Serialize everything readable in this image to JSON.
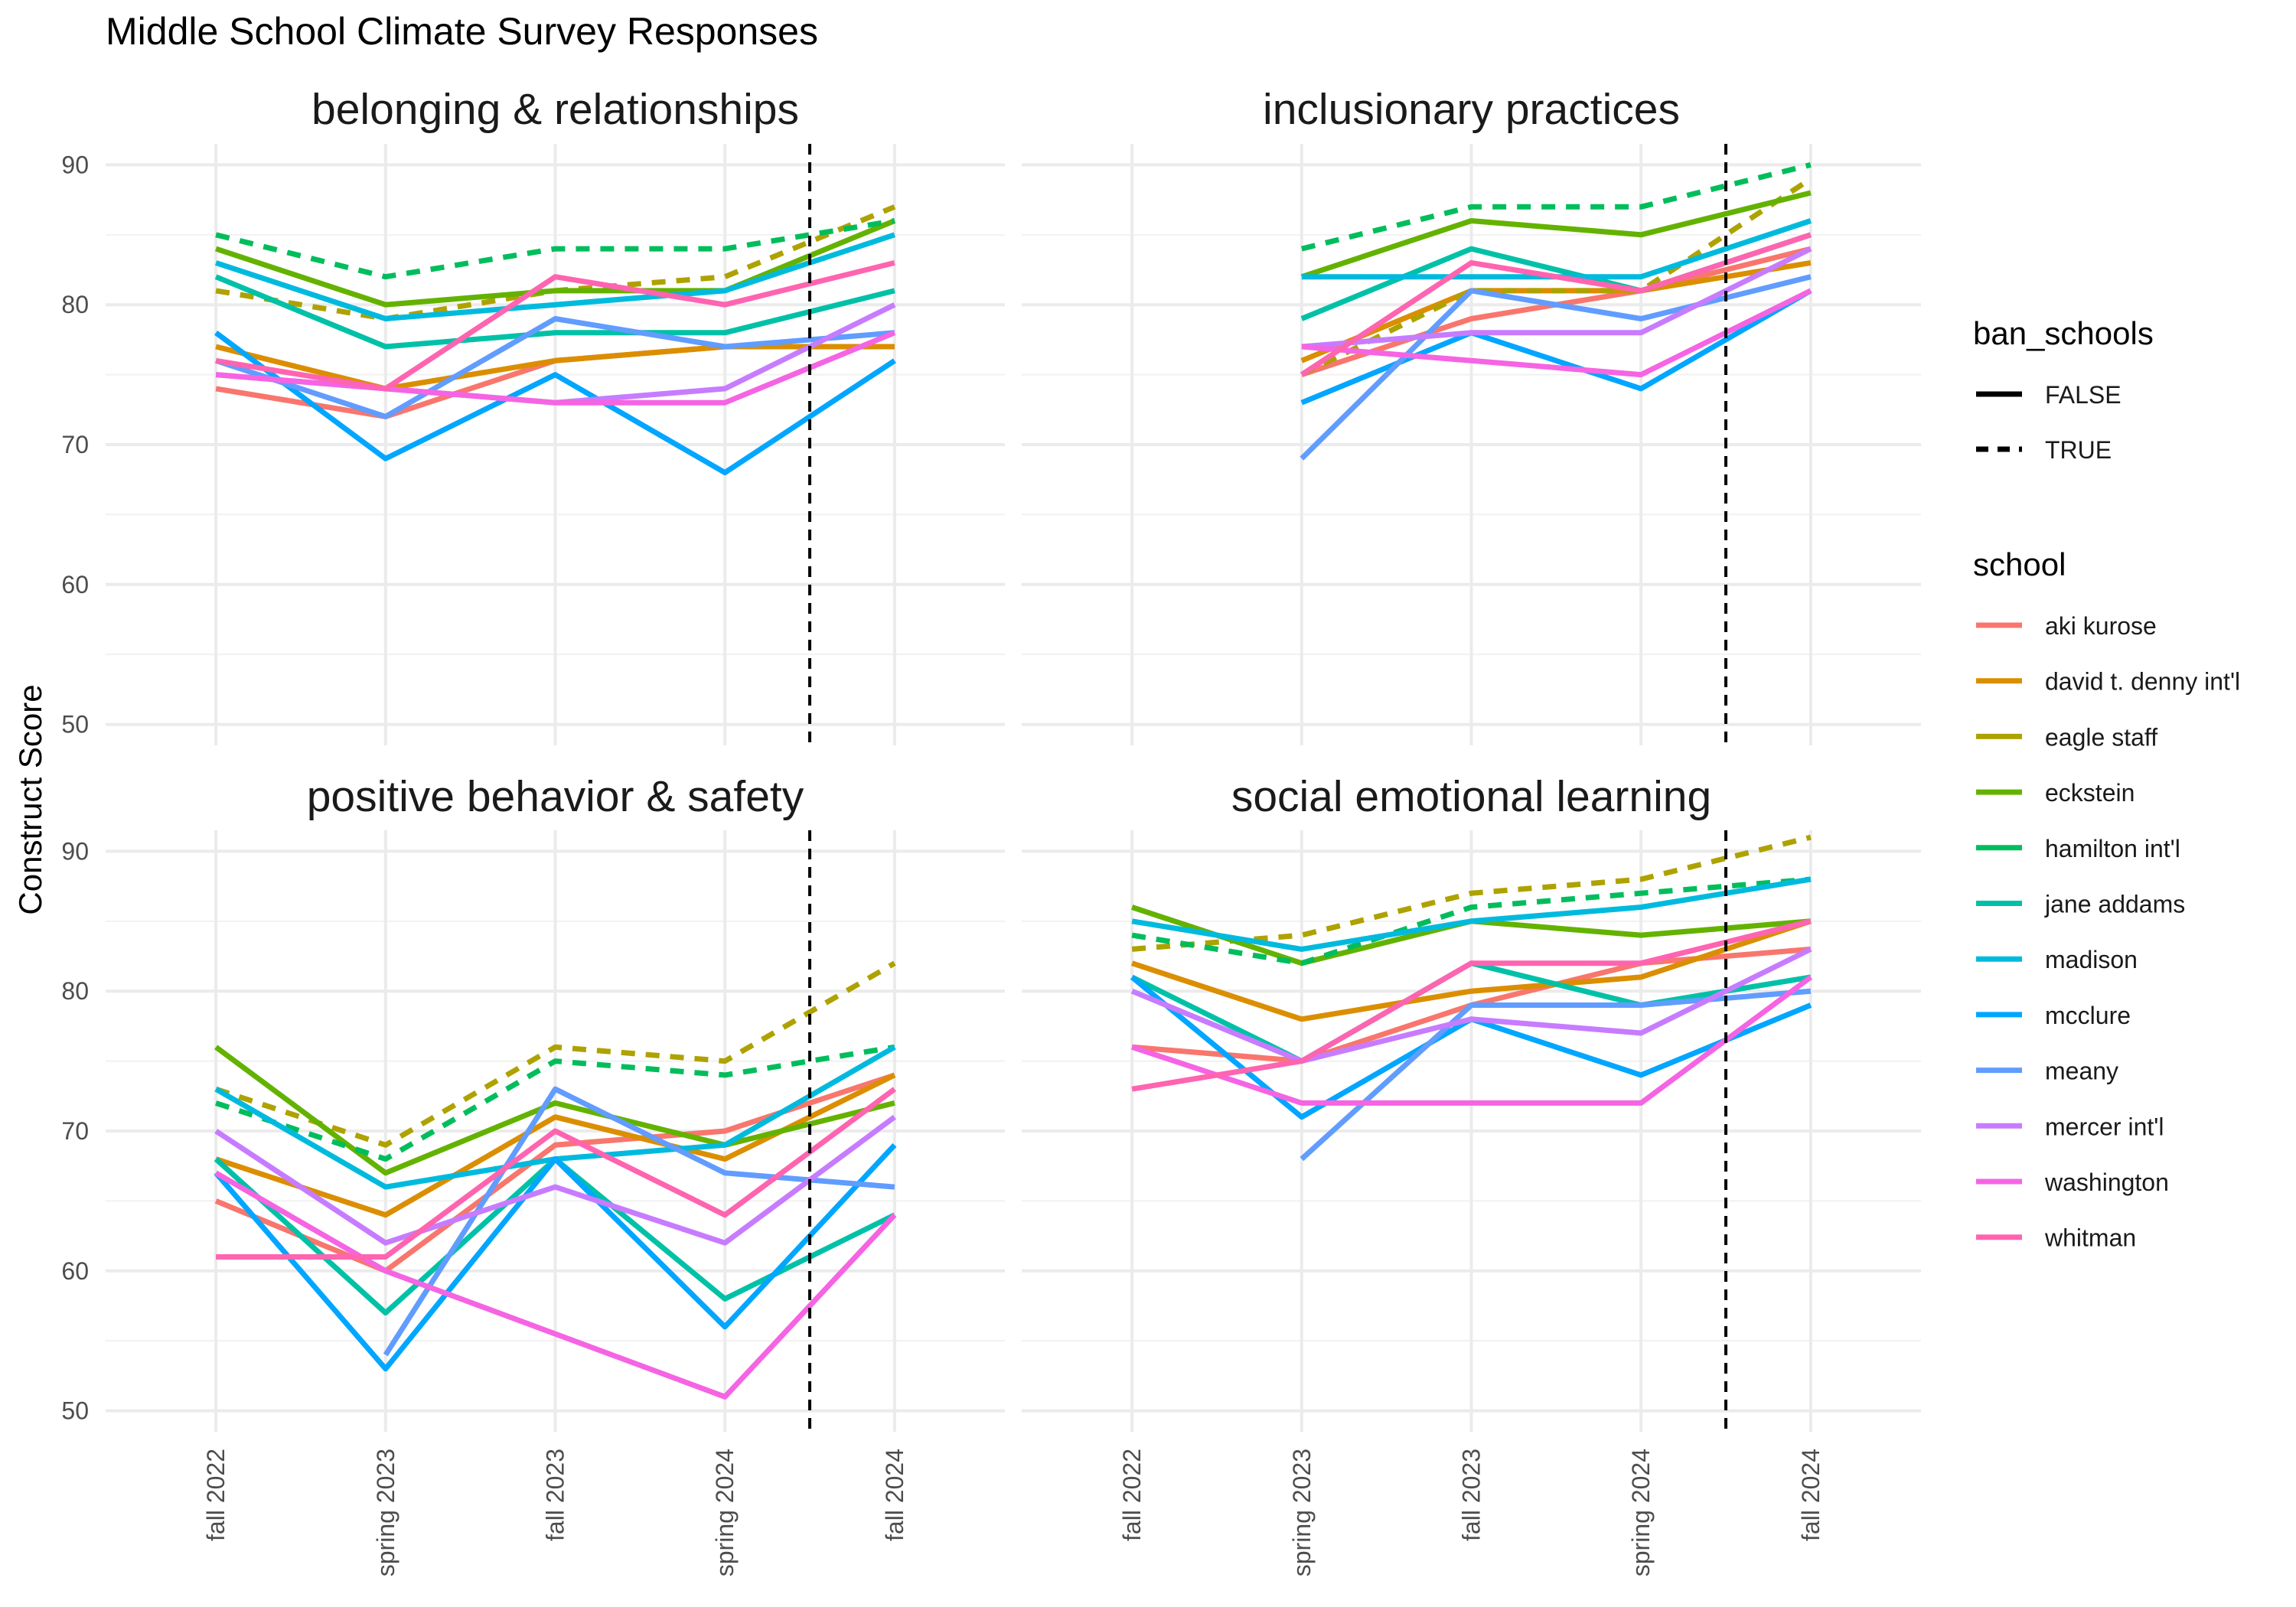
{
  "chart_data": {
    "type": "line",
    "title": "Middle School Climate Survey Responses",
    "ylabel": "Construct Score",
    "xlabel": "",
    "ylim": [
      48.5,
      91.5
    ],
    "y_ticks": [
      50,
      60,
      70,
      80,
      90
    ],
    "grid": true,
    "facet_layout": "2x2",
    "x": [
      "fall 2022",
      "spring 2023",
      "fall 2023",
      "spring 2024",
      "fall 2024"
    ],
    "vline": {
      "between": [
        "spring 2024",
        "fall 2024"
      ],
      "position": 0.5,
      "style": "dashed",
      "color": "#000000"
    },
    "legend": {
      "placement": "right",
      "linetype": {
        "title": "ban_schools",
        "items": [
          {
            "label": "FALSE",
            "dash": "solid"
          },
          {
            "label": "TRUE",
            "dash": "dashed"
          }
        ]
      },
      "color": {
        "title": "school"
      }
    },
    "schools": [
      {
        "name": "aki kurose",
        "color": "#F8766D",
        "ban": false
      },
      {
        "name": "david t. denny int'l",
        "color": "#DB8E00",
        "ban": false
      },
      {
        "name": "eagle staff",
        "color": "#AEA200",
        "ban": true
      },
      {
        "name": "eckstein",
        "color": "#64B200",
        "ban": false
      },
      {
        "name": "hamilton int'l",
        "color": "#00BD5C",
        "ban": true
      },
      {
        "name": "jane addams",
        "color": "#00C1A7",
        "ban": false
      },
      {
        "name": "madison",
        "color": "#00BADE",
        "ban": false
      },
      {
        "name": "mcclure",
        "color": "#00A6FF",
        "ban": false
      },
      {
        "name": "meany",
        "color": "#619CFF",
        "ban": false
      },
      {
        "name": "mercer int'l",
        "color": "#C77CFF",
        "ban": false
      },
      {
        "name": "washington",
        "color": "#F564E3",
        "ban": false
      },
      {
        "name": "whitman",
        "color": "#FF64B0",
        "ban": false
      }
    ],
    "panels": [
      {
        "title": "belonging & relationships",
        "series": [
          {
            "name": "aki kurose",
            "values": [
              74,
              72,
              76,
              77,
              77
            ]
          },
          {
            "name": "david t. denny int'l",
            "values": [
              77,
              74,
              76,
              77,
              77
            ]
          },
          {
            "name": "eagle staff",
            "values": [
              81,
              79,
              81,
              82,
              87
            ]
          },
          {
            "name": "eckstein",
            "values": [
              84,
              80,
              81,
              81,
              86
            ]
          },
          {
            "name": "hamilton int'l",
            "values": [
              85,
              82,
              84,
              84,
              86
            ]
          },
          {
            "name": "jane addams",
            "values": [
              82,
              77,
              78,
              78,
              81
            ]
          },
          {
            "name": "madison",
            "values": [
              83,
              79,
              80,
              81,
              85
            ]
          },
          {
            "name": "mcclure",
            "values": [
              78,
              69,
              75,
              68,
              76
            ]
          },
          {
            "name": "meany",
            "values": [
              76,
              72,
              79,
              77,
              78
            ]
          },
          {
            "name": "mercer int'l",
            "values": [
              75,
              74,
              73,
              74,
              80
            ]
          },
          {
            "name": "washington",
            "values": [
              75,
              74,
              73,
              73,
              78
            ]
          },
          {
            "name": "whitman",
            "values": [
              76,
              74,
              82,
              80,
              83
            ]
          }
        ]
      },
      {
        "title": "inclusionary practices",
        "series": [
          {
            "name": "aki kurose",
            "values": [
              null,
              75,
              79,
              81,
              84
            ]
          },
          {
            "name": "david t. denny int'l",
            "values": [
              null,
              76,
              81,
              81,
              83
            ]
          },
          {
            "name": "eagle staff",
            "values": [
              null,
              75,
              81,
              81,
              89
            ]
          },
          {
            "name": "eckstein",
            "values": [
              null,
              82,
              86,
              85,
              88
            ]
          },
          {
            "name": "hamilton int'l",
            "values": [
              null,
              84,
              87,
              87,
              90
            ]
          },
          {
            "name": "jane addams",
            "values": [
              null,
              79,
              84,
              81,
              85
            ]
          },
          {
            "name": "madison",
            "values": [
              null,
              82,
              82,
              82,
              86
            ]
          },
          {
            "name": "mcclure",
            "values": [
              null,
              73,
              78,
              74,
              81
            ]
          },
          {
            "name": "meany",
            "values": [
              null,
              69,
              81,
              79,
              82
            ]
          },
          {
            "name": "mercer int'l",
            "values": [
              null,
              77,
              78,
              78,
              84
            ]
          },
          {
            "name": "washington",
            "values": [
              null,
              77,
              76,
              75,
              81
            ]
          },
          {
            "name": "whitman",
            "values": [
              null,
              75,
              83,
              81,
              85
            ]
          }
        ]
      },
      {
        "title": "positive behavior & safety",
        "series": [
          {
            "name": "aki kurose",
            "values": [
              65,
              60,
              69,
              70,
              74
            ]
          },
          {
            "name": "david t. denny int'l",
            "values": [
              68,
              64,
              71,
              68,
              74
            ]
          },
          {
            "name": "eagle staff",
            "values": [
              73,
              69,
              76,
              75,
              82
            ]
          },
          {
            "name": "eckstein",
            "values": [
              76,
              67,
              72,
              69,
              72
            ]
          },
          {
            "name": "hamilton int'l",
            "values": [
              72,
              68,
              75,
              74,
              76
            ]
          },
          {
            "name": "jane addams",
            "values": [
              68,
              57,
              68,
              58,
              64
            ]
          },
          {
            "name": "madison",
            "values": [
              73,
              66,
              68,
              69,
              76
            ]
          },
          {
            "name": "mcclure",
            "values": [
              67,
              53,
              68,
              56,
              69
            ]
          },
          {
            "name": "meany",
            "values": [
              null,
              54,
              73,
              67,
              66
            ]
          },
          {
            "name": "mercer int'l",
            "values": [
              70,
              62,
              66,
              62,
              71
            ]
          },
          {
            "name": "washington",
            "values": [
              67,
              60,
              null,
              51,
              64
            ]
          },
          {
            "name": "whitman",
            "values": [
              61,
              61,
              70,
              64,
              73
            ]
          }
        ]
      },
      {
        "title": "social emotional learning",
        "series": [
          {
            "name": "aki kurose",
            "values": [
              76,
              75,
              79,
              82,
              83
            ]
          },
          {
            "name": "david t. denny int'l",
            "values": [
              82,
              78,
              80,
              81,
              85
            ]
          },
          {
            "name": "eagle staff",
            "values": [
              83,
              84,
              87,
              88,
              91
            ]
          },
          {
            "name": "eckstein",
            "values": [
              86,
              82,
              85,
              84,
              85
            ]
          },
          {
            "name": "hamilton int'l",
            "values": [
              84,
              82,
              86,
              87,
              88
            ]
          },
          {
            "name": "jane addams",
            "values": [
              81,
              75,
              82,
              79,
              81
            ]
          },
          {
            "name": "madison",
            "values": [
              85,
              83,
              85,
              86,
              88
            ]
          },
          {
            "name": "mcclure",
            "values": [
              81,
              71,
              78,
              74,
              79
            ]
          },
          {
            "name": "meany",
            "values": [
              null,
              68,
              79,
              79,
              80
            ]
          },
          {
            "name": "mercer int'l",
            "values": [
              80,
              75,
              78,
              77,
              83
            ]
          },
          {
            "name": "washington",
            "values": [
              76,
              72,
              72,
              72,
              81
            ]
          },
          {
            "name": "whitman",
            "values": [
              73,
              75,
              82,
              82,
              85
            ]
          }
        ]
      }
    ]
  }
}
